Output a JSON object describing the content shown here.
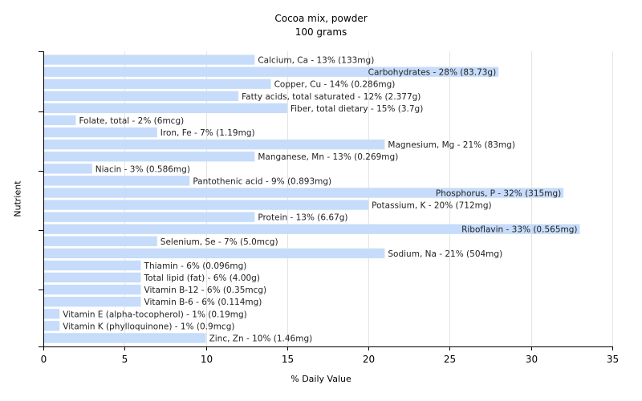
{
  "chart_data": {
    "type": "bar",
    "orientation": "horizontal",
    "title": "Cocoa mix, powder",
    "subtitle": "100 grams",
    "xlabel": "% Daily Value",
    "ylabel": "Nutrient",
    "xlim": [
      0,
      35
    ],
    "xticks": [
      "0",
      "5",
      "10",
      "15",
      "20",
      "25",
      "30",
      "35"
    ],
    "grid": "vertical",
    "bar_color": "#c6dcfa",
    "categories": [
      "Calcium, Ca",
      "Carbohydrates",
      "Copper, Cu",
      "Fatty acids, total saturated",
      "Fiber, total dietary",
      "Folate, total",
      "Iron, Fe",
      "Magnesium, Mg",
      "Manganese, Mn",
      "Niacin",
      "Pantothenic acid",
      "Phosphorus, P",
      "Potassium, K",
      "Protein",
      "Riboflavin",
      "Selenium, Se",
      "Sodium, Na",
      "Thiamin",
      "Total lipid (fat)",
      "Vitamin B-12",
      "Vitamin B-6",
      "Vitamin E (alpha-tocopherol)",
      "Vitamin K (phylloquinone)",
      "Zinc, Zn"
    ],
    "values": [
      13,
      28,
      14,
      12,
      15,
      2,
      7,
      21,
      13,
      3,
      9,
      32,
      20,
      13,
      33,
      7,
      21,
      6,
      6,
      6,
      6,
      1,
      1,
      10
    ],
    "labels": [
      "Calcium, Ca - 13% (133mg)",
      "Carbohydrates - 28% (83.73g)",
      "Copper, Cu - 14% (0.286mg)",
      "Fatty acids, total saturated - 12% (2.377g)",
      "Fiber, total dietary - 15% (3.7g)",
      "Folate, total - 2% (6mcg)",
      "Iron, Fe - 7% (1.19mg)",
      "Magnesium, Mg - 21% (83mg)",
      "Manganese, Mn - 13% (0.269mg)",
      "Niacin - 3% (0.586mg)",
      "Pantothenic acid - 9% (0.893mg)",
      "Phosphorus, P - 32% (315mg)",
      "Potassium, K - 20% (712mg)",
      "Protein - 13% (6.67g)",
      "Riboflavin - 33% (0.565mg)",
      "Selenium, Se - 7% (5.0mcg)",
      "Sodium, Na - 21% (504mg)",
      "Thiamin - 6% (0.096mg)",
      "Total lipid (fat) - 6% (4.00g)",
      "Vitamin B-12 - 6% (0.35mcg)",
      "Vitamin B-6 - 6% (0.114mg)",
      "Vitamin E (alpha-tocopherol) - 1% (0.19mg)",
      "Vitamin K (phylloquinone) - 1% (0.9mcg)",
      "Zinc, Zn - 10% (1.46mg)"
    ]
  }
}
